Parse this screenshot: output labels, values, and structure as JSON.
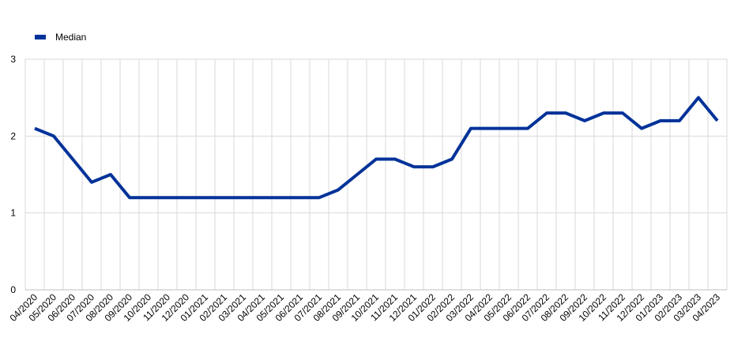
{
  "chart_data": {
    "type": "line",
    "categories": [
      "04/2020",
      "05/2020",
      "06/2020",
      "07/2020",
      "08/2020",
      "09/2020",
      "10/2020",
      "11/2020",
      "12/2020",
      "01/2021",
      "02/2021",
      "03/2021",
      "04/2021",
      "05/2021",
      "06/2021",
      "07/2021",
      "08/2021",
      "09/2021",
      "10/2021",
      "11/2021",
      "12/2021",
      "01/2022",
      "02/2022",
      "03/2022",
      "04/2022",
      "05/2022",
      "06/2022",
      "07/2022",
      "08/2022",
      "09/2022",
      "10/2022",
      "11/2022",
      "12/2022",
      "01/2023",
      "02/2023",
      "03/2023",
      "04/2023"
    ],
    "series": [
      {
        "name": "Median",
        "color": "#003299",
        "values": [
          2.1,
          2.0,
          1.7,
          1.4,
          1.5,
          1.2,
          1.2,
          1.2,
          1.2,
          1.2,
          1.2,
          1.2,
          1.2,
          1.2,
          1.2,
          1.2,
          1.3,
          1.5,
          1.7,
          1.7,
          1.6,
          1.6,
          1.7,
          2.1,
          2.1,
          2.1,
          2.1,
          2.3,
          2.3,
          2.2,
          2.3,
          2.3,
          2.1,
          2.2,
          2.2,
          2.5,
          2.2
        ]
      }
    ],
    "ylim": [
      0,
      3
    ],
    "yticks": [
      0,
      1,
      2,
      3
    ],
    "grid": true,
    "legend": "top-left"
  }
}
